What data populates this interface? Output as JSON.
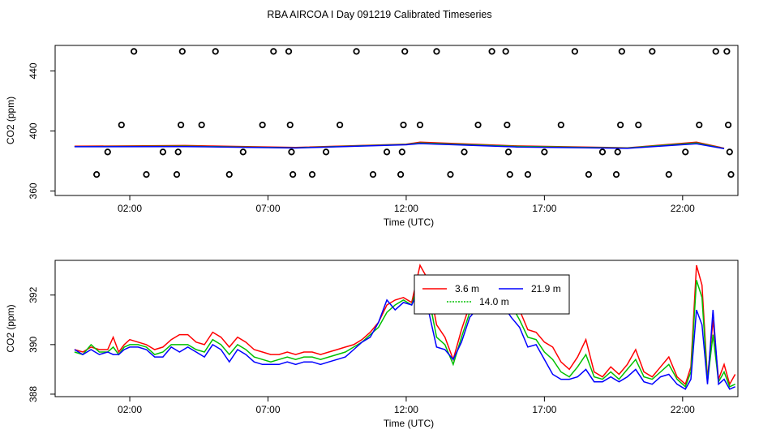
{
  "title": "RBA AIRCOA I  Day 091219  Calibrated Timeseries",
  "chart_data": [
    {
      "type": "scatter",
      "xlabel": "Time (UTC)",
      "ylabel": "CO2 (ppm)",
      "xlim": [
        -0.7,
        24
      ],
      "ylim": [
        357,
        457
      ],
      "x_ticks": [
        2,
        7,
        12,
        17,
        22
      ],
      "x_tick_labels": [
        "02:00",
        "07:00",
        "12:00",
        "17:00",
        "22:00"
      ],
      "y_ticks": [
        360,
        400,
        440
      ],
      "y_tick_labels": [
        "360",
        "400",
        "440"
      ],
      "markers": [
        {
          "x": 0.8,
          "y": 371
        },
        {
          "x": 1.2,
          "y": 386
        },
        {
          "x": 1.7,
          "y": 404
        },
        {
          "x": 2.15,
          "y": 453
        },
        {
          "x": 2.6,
          "y": 371
        },
        {
          "x": 3.2,
          "y": 386
        },
        {
          "x": 3.7,
          "y": 371
        },
        {
          "x": 3.75,
          "y": 386
        },
        {
          "x": 3.85,
          "y": 404
        },
        {
          "x": 3.9,
          "y": 453
        },
        {
          "x": 4.6,
          "y": 404
        },
        {
          "x": 5.1,
          "y": 453
        },
        {
          "x": 5.6,
          "y": 371
        },
        {
          "x": 6.1,
          "y": 386
        },
        {
          "x": 6.8,
          "y": 404
        },
        {
          "x": 7.2,
          "y": 453
        },
        {
          "x": 7.75,
          "y": 453
        },
        {
          "x": 7.8,
          "y": 404
        },
        {
          "x": 7.85,
          "y": 386
        },
        {
          "x": 7.9,
          "y": 371
        },
        {
          "x": 8.6,
          "y": 371
        },
        {
          "x": 9.1,
          "y": 386
        },
        {
          "x": 9.6,
          "y": 404
        },
        {
          "x": 10.2,
          "y": 453
        },
        {
          "x": 10.8,
          "y": 371
        },
        {
          "x": 11.3,
          "y": 386
        },
        {
          "x": 11.8,
          "y": 371
        },
        {
          "x": 11.85,
          "y": 386
        },
        {
          "x": 11.9,
          "y": 404
        },
        {
          "x": 11.95,
          "y": 453
        },
        {
          "x": 12.5,
          "y": 404
        },
        {
          "x": 13.1,
          "y": 453
        },
        {
          "x": 13.6,
          "y": 371
        },
        {
          "x": 14.1,
          "y": 386
        },
        {
          "x": 14.6,
          "y": 404
        },
        {
          "x": 15.1,
          "y": 453
        },
        {
          "x": 15.6,
          "y": 453
        },
        {
          "x": 15.65,
          "y": 404
        },
        {
          "x": 15.7,
          "y": 386
        },
        {
          "x": 15.75,
          "y": 371
        },
        {
          "x": 16.4,
          "y": 371
        },
        {
          "x": 17.0,
          "y": 386
        },
        {
          "x": 17.6,
          "y": 404
        },
        {
          "x": 18.1,
          "y": 453
        },
        {
          "x": 18.6,
          "y": 371
        },
        {
          "x": 19.1,
          "y": 386
        },
        {
          "x": 19.6,
          "y": 371
        },
        {
          "x": 19.65,
          "y": 386
        },
        {
          "x": 19.75,
          "y": 404
        },
        {
          "x": 19.8,
          "y": 453
        },
        {
          "x": 20.4,
          "y": 404
        },
        {
          "x": 20.9,
          "y": 453
        },
        {
          "x": 21.5,
          "y": 371
        },
        {
          "x": 22.1,
          "y": 386
        },
        {
          "x": 22.6,
          "y": 404
        },
        {
          "x": 23.2,
          "y": 453
        },
        {
          "x": 23.6,
          "y": 453
        },
        {
          "x": 23.65,
          "y": 404
        },
        {
          "x": 23.7,
          "y": 386
        },
        {
          "x": 23.75,
          "y": 371
        }
      ],
      "series": [
        {
          "color": "#ff0000",
          "x": [
            0,
            4,
            8,
            12,
            12.5,
            16,
            20,
            22.5,
            23.5
          ],
          "y": [
            389.8,
            390.3,
            389.0,
            391.2,
            392.5,
            390.0,
            388.8,
            392.5,
            388.5
          ]
        },
        {
          "color": "#00c000",
          "x": [
            0,
            4,
            8,
            12,
            12.5,
            16,
            20,
            22.5,
            23.5
          ],
          "y": [
            389.6,
            389.8,
            388.8,
            391.0,
            392.0,
            389.7,
            388.6,
            392.0,
            388.3
          ]
        },
        {
          "color": "#0000ff",
          "x": [
            0,
            4,
            8,
            12,
            12.5,
            16,
            20,
            22.5,
            23.5
          ],
          "y": [
            389.5,
            389.6,
            388.6,
            390.8,
            391.6,
            389.3,
            388.4,
            391.5,
            388.2
          ]
        }
      ]
    },
    {
      "type": "line",
      "xlabel": "Time (UTC)",
      "ylabel": "CO2 (ppm)",
      "xlim": [
        -0.7,
        24
      ],
      "ylim": [
        387.9,
        393.4
      ],
      "x_ticks": [
        2,
        7,
        12,
        17,
        22
      ],
      "x_tick_labels": [
        "02:00",
        "07:00",
        "12:00",
        "17:00",
        "22:00"
      ],
      "y_ticks": [
        388,
        390,
        392
      ],
      "y_tick_labels": [
        "388",
        "390",
        "392"
      ],
      "legend_placement": "top-center",
      "series": [
        {
          "name": "3.6 m",
          "color": "#ff0000",
          "x": [
            0.0,
            0.3,
            0.6,
            0.9,
            1.2,
            1.4,
            1.6,
            1.8,
            2.0,
            2.3,
            2.6,
            2.9,
            3.2,
            3.5,
            3.8,
            4.1,
            4.4,
            4.7,
            5.0,
            5.3,
            5.6,
            5.9,
            6.2,
            6.5,
            6.8,
            7.1,
            7.4,
            7.7,
            8.0,
            8.3,
            8.6,
            8.9,
            9.2,
            9.5,
            9.8,
            10.1,
            10.4,
            10.7,
            11.0,
            11.3,
            11.6,
            11.9,
            12.2,
            12.5,
            12.8,
            13.1,
            13.4,
            13.7,
            14.0,
            14.3,
            14.6,
            14.9,
            15.2,
            15.5,
            15.8,
            16.1,
            16.4,
            16.7,
            17.0,
            17.3,
            17.6,
            17.9,
            18.2,
            18.5,
            18.8,
            19.1,
            19.4,
            19.7,
            20.0,
            20.3,
            20.6,
            20.9,
            21.2,
            21.5,
            21.8,
            22.1,
            22.3,
            22.5,
            22.7,
            22.9,
            23.1,
            23.3,
            23.5,
            23.7,
            23.9
          ],
          "y": [
            389.8,
            389.7,
            389.9,
            389.8,
            389.8,
            390.3,
            389.7,
            390.0,
            390.2,
            390.1,
            390.0,
            389.8,
            389.9,
            390.2,
            390.4,
            390.4,
            390.1,
            390.0,
            390.5,
            390.3,
            389.9,
            390.3,
            390.1,
            389.8,
            389.7,
            389.6,
            389.6,
            389.7,
            389.6,
            389.7,
            389.7,
            389.6,
            389.7,
            389.8,
            389.9,
            390.0,
            390.2,
            390.5,
            390.9,
            391.6,
            391.8,
            391.9,
            391.7,
            393.2,
            392.6,
            390.8,
            390.3,
            389.4,
            390.6,
            391.6,
            391.9,
            392.2,
            391.6,
            392.3,
            391.8,
            391.4,
            390.6,
            390.5,
            390.1,
            389.9,
            389.3,
            389.0,
            389.5,
            390.2,
            388.9,
            388.7,
            389.1,
            388.8,
            389.2,
            389.8,
            388.9,
            388.7,
            389.1,
            389.5,
            388.7,
            388.4,
            389.1,
            393.2,
            392.4,
            388.6,
            391.0,
            388.6,
            389.2,
            388.4,
            388.8
          ]
        },
        {
          "name": "14.0 m",
          "color": "#00c000",
          "x": [
            0.0,
            0.3,
            0.6,
            0.9,
            1.2,
            1.4,
            1.6,
            1.8,
            2.0,
            2.3,
            2.6,
            2.9,
            3.2,
            3.5,
            3.8,
            4.1,
            4.4,
            4.7,
            5.0,
            5.3,
            5.6,
            5.9,
            6.2,
            6.5,
            6.8,
            7.1,
            7.4,
            7.7,
            8.0,
            8.3,
            8.6,
            8.9,
            9.2,
            9.5,
            9.8,
            10.1,
            10.4,
            10.7,
            11.0,
            11.3,
            11.6,
            11.9,
            12.2,
            12.5,
            12.8,
            13.1,
            13.4,
            13.7,
            14.0,
            14.3,
            14.6,
            14.9,
            15.2,
            15.5,
            15.8,
            16.1,
            16.4,
            16.7,
            17.0,
            17.3,
            17.6,
            17.9,
            18.2,
            18.5,
            18.8,
            19.1,
            19.4,
            19.7,
            20.0,
            20.3,
            20.6,
            20.9,
            21.2,
            21.5,
            21.8,
            22.1,
            22.3,
            22.5,
            22.7,
            22.9,
            23.1,
            23.3,
            23.5,
            23.7,
            23.9
          ],
          "y": [
            389.7,
            389.6,
            390.0,
            389.7,
            389.7,
            389.9,
            389.6,
            389.9,
            390.0,
            390.0,
            389.9,
            389.6,
            389.7,
            390.0,
            390.0,
            390.0,
            389.8,
            389.7,
            390.2,
            390.0,
            389.6,
            390.0,
            389.8,
            389.5,
            389.4,
            389.3,
            389.4,
            389.5,
            389.4,
            389.5,
            389.5,
            389.4,
            389.5,
            389.6,
            389.7,
            389.9,
            390.1,
            390.4,
            390.7,
            391.3,
            391.6,
            391.8,
            391.6,
            392.7,
            392.0,
            390.3,
            390.0,
            389.2,
            390.3,
            391.3,
            391.7,
            392.0,
            391.5,
            392.0,
            391.6,
            391.0,
            390.3,
            390.2,
            389.7,
            389.4,
            388.9,
            388.7,
            389.1,
            389.6,
            388.7,
            388.6,
            388.9,
            388.6,
            389.0,
            389.4,
            388.7,
            388.6,
            388.9,
            389.2,
            388.6,
            388.3,
            388.9,
            392.6,
            391.9,
            388.5,
            390.4,
            388.5,
            388.9,
            388.3,
            388.4
          ]
        },
        {
          "name": "21.9 m",
          "color": "#0000ff",
          "x": [
            0.0,
            0.3,
            0.6,
            0.9,
            1.2,
            1.4,
            1.6,
            1.8,
            2.0,
            2.3,
            2.6,
            2.9,
            3.2,
            3.5,
            3.8,
            4.1,
            4.4,
            4.7,
            5.0,
            5.3,
            5.6,
            5.9,
            6.2,
            6.5,
            6.8,
            7.1,
            7.4,
            7.7,
            8.0,
            8.3,
            8.6,
            8.9,
            9.2,
            9.5,
            9.8,
            10.1,
            10.4,
            10.7,
            11.0,
            11.3,
            11.6,
            11.9,
            12.2,
            12.5,
            12.8,
            13.1,
            13.4,
            13.7,
            14.0,
            14.3,
            14.6,
            14.9,
            15.2,
            15.5,
            15.8,
            16.1,
            16.4,
            16.7,
            17.0,
            17.3,
            17.6,
            17.9,
            18.2,
            18.5,
            18.8,
            19.1,
            19.4,
            19.7,
            20.0,
            20.3,
            20.6,
            20.9,
            21.2,
            21.5,
            21.8,
            22.1,
            22.3,
            22.5,
            22.7,
            22.9,
            23.1,
            23.3,
            23.5,
            23.7,
            23.9
          ],
          "y": [
            389.8,
            389.6,
            389.8,
            389.6,
            389.7,
            389.6,
            389.6,
            389.8,
            389.9,
            389.9,
            389.8,
            389.5,
            389.5,
            389.9,
            389.7,
            389.9,
            389.7,
            389.5,
            390.0,
            389.8,
            389.3,
            389.8,
            389.6,
            389.3,
            389.2,
            389.2,
            389.2,
            389.3,
            389.2,
            389.3,
            389.3,
            389.2,
            389.3,
            389.4,
            389.5,
            389.8,
            390.1,
            390.3,
            390.9,
            391.8,
            391.4,
            391.7,
            391.6,
            392.3,
            391.4,
            389.9,
            389.8,
            389.4,
            390.1,
            391.1,
            391.5,
            391.8,
            391.6,
            391.6,
            391.1,
            390.7,
            389.9,
            390.0,
            389.4,
            388.8,
            388.6,
            388.6,
            388.7,
            389.0,
            388.5,
            388.5,
            388.7,
            388.5,
            388.7,
            389.0,
            388.5,
            388.4,
            388.7,
            388.8,
            388.4,
            388.2,
            388.6,
            391.4,
            390.8,
            388.4,
            391.4,
            388.4,
            388.6,
            388.2,
            388.3
          ]
        }
      ]
    }
  ]
}
